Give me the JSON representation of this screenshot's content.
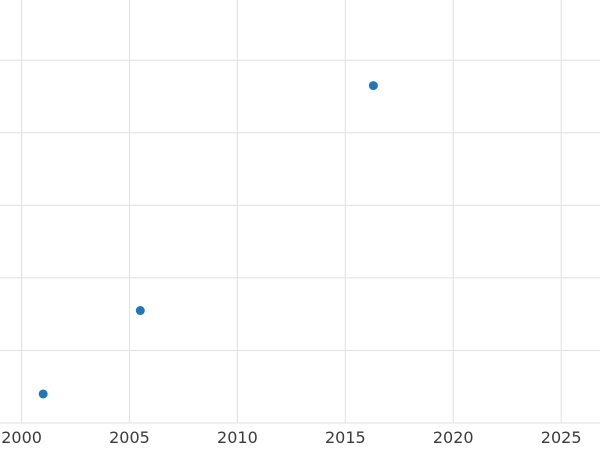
{
  "chart_data": {
    "type": "scatter",
    "title": "",
    "xlabel": "",
    "ylabel": "",
    "points": [
      {
        "x": 2001.0,
        "y": 0.4
      },
      {
        "x": 2005.5,
        "y": 1.55
      },
      {
        "x": 2016.3,
        "y": 4.65
      }
    ],
    "x_ticks": [
      "2000",
      "2005",
      "2010",
      "2015",
      "2020",
      "2025"
    ],
    "x_tick_values": [
      2000,
      2005,
      2010,
      2015,
      2020,
      2025
    ],
    "y_gridline_values": [
      0,
      1,
      2,
      3,
      4,
      5
    ],
    "xlim": [
      1999.0,
      2026.8
    ],
    "ylim": [
      0,
      5.83
    ],
    "grid": true,
    "legend_position": "none",
    "marker_color": "#1f77b4",
    "marker_radius": 4.5,
    "grid_color": "#e0e0e0",
    "tick_label_color": "#3b3b3b"
  }
}
